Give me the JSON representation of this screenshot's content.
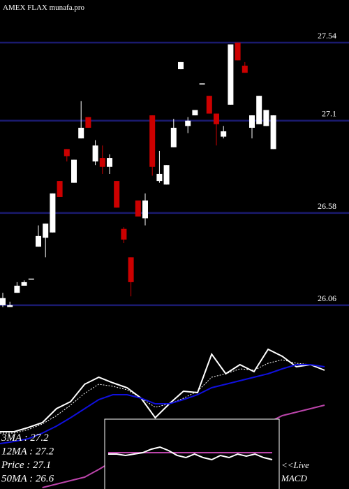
{
  "chart_data": [
    {
      "type": "candlestick",
      "title": "AMEX  FLAX munafa.pro",
      "open": [
        26.06,
        26.05,
        26.13,
        26.17,
        26.21,
        26.39,
        26.44,
        26.47,
        26.76,
        26.94,
        26.75,
        27.0,
        27.12,
        26.87,
        26.89,
        26.84,
        26.76,
        26.49,
        26.33,
        26.65,
        26.55,
        27.13,
        26.76,
        26.74,
        26.95,
        27.39,
        27.07,
        27.13,
        27.31,
        27.24,
        27.14,
        27.01,
        27.19,
        27.54,
        27.41,
        27.06,
        27.08,
        27.07,
        26.94
      ],
      "high": [
        26.13,
        26.08,
        26.19,
        26.2,
        26.21,
        26.51,
        26.52,
        26.69,
        26.76,
        26.94,
        26.88,
        27.21,
        27.12,
        26.99,
        26.96,
        26.91,
        26.76,
        26.5,
        26.33,
        26.65,
        26.69,
        27.13,
        26.93,
        26.85,
        27.11,
        27.43,
        27.12,
        27.16,
        27.31,
        27.24,
        27.14,
        27.07,
        27.53,
        27.54,
        27.43,
        27.13,
        27.24,
        27.16,
        27.13
      ],
      "low": [
        26.05,
        26.05,
        26.13,
        26.17,
        26.21,
        26.39,
        26.33,
        26.47,
        26.67,
        26.87,
        26.75,
        27.0,
        27.06,
        26.85,
        26.8,
        26.8,
        26.61,
        26.41,
        26.11,
        26.56,
        26.51,
        26.79,
        26.75,
        26.74,
        26.95,
        27.39,
        27.03,
        27.13,
        27.31,
        27.14,
        26.96,
        27.0,
        27.19,
        27.44,
        27.37,
        27.0,
        27.08,
        27.07,
        26.94
      ],
      "close": [
        26.1,
        26.06,
        26.17,
        26.19,
        26.21,
        26.45,
        26.52,
        26.69,
        26.67,
        26.9,
        26.88,
        27.06,
        27.06,
        26.96,
        26.84,
        26.89,
        26.61,
        26.43,
        26.19,
        26.56,
        26.65,
        26.84,
        26.8,
        26.85,
        27.06,
        27.43,
        27.1,
        27.16,
        27.31,
        27.14,
        27.08,
        27.04,
        27.53,
        27.44,
        27.37,
        27.13,
        27.24,
        27.16,
        27.13
      ],
      "up_color": "#ffffff",
      "down_color": "#cc0000",
      "ylim": [
        26.04,
        27.78
      ],
      "yticks": [
        26.06,
        26.58,
        27.1,
        27.54
      ],
      "grid": true,
      "grid_color": "#1a1a6e"
    },
    {
      "type": "line",
      "ylim": [
        25.4,
        27.95
      ],
      "series": [
        {
          "name": "Price  : 27.1",
          "color": "#ffffff",
          "values": [
            26.22,
            26.22,
            26.28,
            26.35,
            26.55,
            26.65,
            26.9,
            27.0,
            26.92,
            26.85,
            26.7,
            26.42,
            26.62,
            26.8,
            26.78,
            27.33,
            27.05,
            27.18,
            27.08,
            27.4,
            27.3,
            27.15,
            27.18,
            27.1
          ]
        },
        {
          "name": "3MA : 27.2",
          "color": "#ffffff",
          "dashed": true,
          "values": [
            26.2,
            26.2,
            26.25,
            26.33,
            26.45,
            26.6,
            26.77,
            26.9,
            26.87,
            26.82,
            26.7,
            26.57,
            26.62,
            26.7,
            26.8,
            27.0,
            27.05,
            27.12,
            27.1,
            27.2,
            27.25,
            27.2,
            27.18,
            27.15
          ]
        },
        {
          "name": "12MA : 27.2",
          "color": "#1010dd",
          "values": [
            26.05,
            26.08,
            26.12,
            26.2,
            26.3,
            26.42,
            26.55,
            26.68,
            26.75,
            26.75,
            26.7,
            26.62,
            26.62,
            26.68,
            26.75,
            26.85,
            26.9,
            26.95,
            27.0,
            27.05,
            27.12,
            27.18,
            27.18,
            27.15
          ]
        },
        {
          "name": "50MA : 26.6",
          "color": "#bb44aa",
          "values": [
            null,
            null,
            null,
            25.42,
            25.47,
            25.52,
            25.57,
            25.68,
            25.8,
            25.85,
            25.9,
            25.95,
            26.0,
            26.05,
            26.1,
            26.15,
            26.2,
            26.25,
            26.3,
            26.35,
            26.45,
            26.5,
            26.55,
            26.6
          ]
        }
      ]
    },
    {
      "type": "macd",
      "ylim": [
        -5.2,
        4.8
      ],
      "label_lines": [
        "<<Live",
        "MACD"
      ],
      "series": [
        {
          "color": "#bb44aa",
          "values": [
            0,
            0,
            0,
            0,
            0,
            0,
            0,
            0,
            0,
            0,
            0,
            0,
            0,
            0,
            0,
            0,
            0,
            0,
            0,
            0
          ]
        },
        {
          "color": "#ffffff",
          "values": [
            -0.2,
            -0.2,
            -0.4,
            -0.2,
            0,
            0.5,
            0.8,
            0.3,
            -0.4,
            -0.7,
            -0.2,
            -0.7,
            -1.0,
            -0.4,
            -0.7,
            -0.2,
            -0.5,
            -0.2,
            -0.7,
            -1.0
          ]
        }
      ]
    }
  ]
}
